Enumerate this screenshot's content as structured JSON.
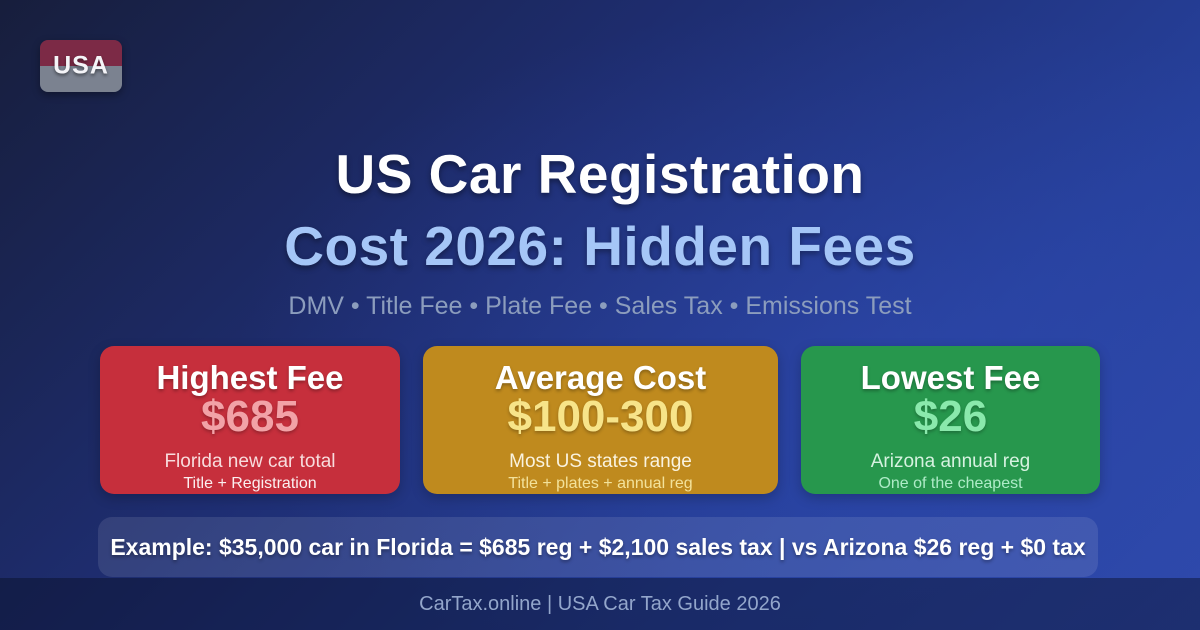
{
  "badge": {
    "label": "USA",
    "top_color": "#7c2a46",
    "bottom_color": "#7b8290"
  },
  "header": {
    "title": "US Car Registration",
    "subtitle": "Cost 2026: Hidden Fees",
    "tagline": "DMV • Title Fee • Plate Fee • Sales Tax • Emissions Test",
    "title_color": "#ffffff",
    "subtitle_color": "#a5c6f7",
    "tagline_color": "#8c9dbd"
  },
  "cards": [
    {
      "title": "Highest Fee",
      "amount": "$685",
      "line1": "Florida new car total",
      "line2": "Title + Registration",
      "bg_color": "#c62f3c",
      "amount_color": "#f2a2a7"
    },
    {
      "title": "Average Cost",
      "amount": "$100-300",
      "line1": "Most US states range",
      "line2": "Title + plates + annual reg",
      "bg_color": "#bf8a1e",
      "amount_color": "#f7e489"
    },
    {
      "title": "Lowest Fee",
      "amount": "$26",
      "line1": "Arizona annual reg",
      "line2": "One of the cheapest",
      "bg_color": "#27974d",
      "amount_color": "#8ae9ac"
    }
  ],
  "example": {
    "text": "Example: $35,000 car in Florida = $685 reg + $2,100 sales tax | vs Arizona $26 reg + $0 tax"
  },
  "footer": {
    "text": "CarTax.online | USA Car Tax Guide 2026"
  },
  "background": {
    "gradient_from": "#171e3c",
    "gradient_to": "#2e49ab"
  }
}
